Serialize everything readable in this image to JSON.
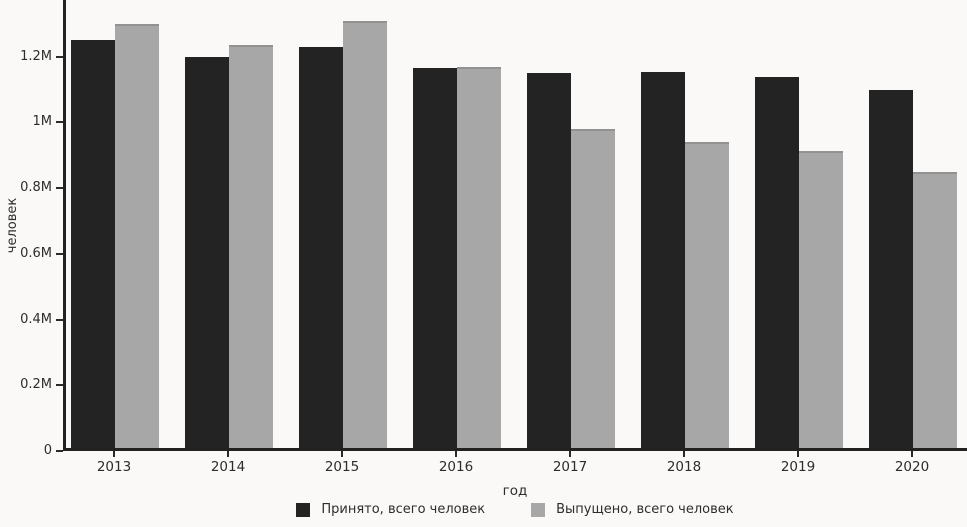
{
  "chart_data": {
    "type": "bar",
    "title": "",
    "xlabel": "год",
    "ylabel": "человек",
    "categories": [
      "2013",
      "2014",
      "2015",
      "2016",
      "2017",
      "2018",
      "2019",
      "2020"
    ],
    "series": [
      {
        "name": "Принято, всего человек",
        "color": "#232323",
        "values": [
          1240000,
          1190000,
          1220000,
          1155000,
          1140000,
          1145000,
          1130000,
          1090000
        ]
      },
      {
        "name": "Выпущено, всего человек",
        "color": "#a7a7a7",
        "values": [
          1290000,
          1225000,
          1300000,
          1160000,
          970000,
          930000,
          905000,
          840000
        ]
      }
    ],
    "y_ticks": [
      {
        "value": 0,
        "label": "0"
      },
      {
        "value": 200000,
        "label": "0.2M"
      },
      {
        "value": 400000,
        "label": "0.4M"
      },
      {
        "value": 600000,
        "label": "0.6M"
      },
      {
        "value": 800000,
        "label": "0.8M"
      },
      {
        "value": 1000000,
        "label": "1M"
      },
      {
        "value": 1200000,
        "label": "1.2M"
      }
    ],
    "ylim": [
      0,
      1372000
    ],
    "grid": false,
    "legend_position": "bottom"
  },
  "colors": {
    "background": "#faf9f7",
    "axis": "#2a2a2a",
    "text": "#2d2d2d",
    "bar_admitted": "#232323",
    "bar_graduated": "#a7a7a7"
  }
}
